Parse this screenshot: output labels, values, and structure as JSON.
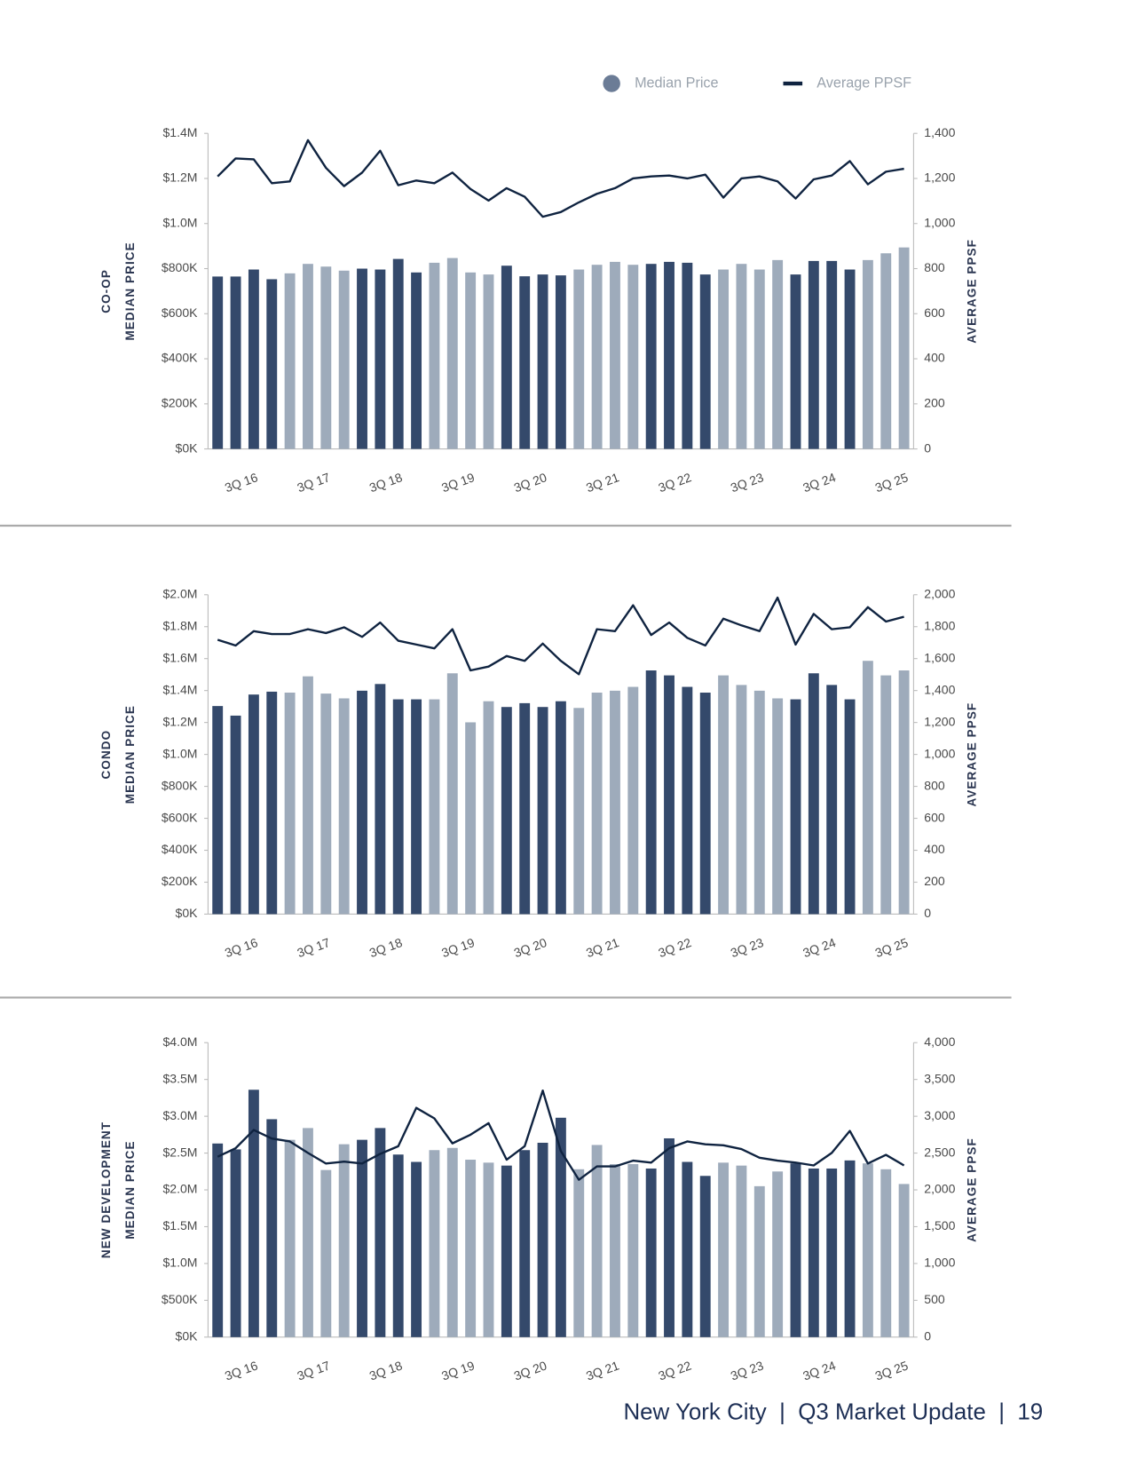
{
  "chart_data": [
    {
      "type": "bar",
      "ylabel": [
        "CO-OP",
        "MEDIAN PRICE"
      ],
      "y2label": "AVERAGE PPSF",
      "categories": [
        null,
        null,
        "3Q 16",
        null,
        null,
        null,
        "3Q 17",
        null,
        null,
        null,
        "3Q 18",
        null,
        null,
        null,
        "3Q 19",
        null,
        null,
        null,
        "3Q 20",
        null,
        null,
        null,
        "3Q 21",
        null,
        null,
        null,
        "3Q 22",
        null,
        null,
        null,
        "3Q 23",
        null,
        null,
        null,
        "3Q 24",
        null,
        null,
        null,
        "3Q 25"
      ],
      "ylim": [
        0,
        1400000
      ],
      "yticks": [
        {
          "value": 0,
          "label": "$0K"
        },
        {
          "value": 200000,
          "label": "$200K"
        },
        {
          "value": 400000,
          "label": "$400K"
        },
        {
          "value": 600000,
          "label": "$600K"
        },
        {
          "value": 800000,
          "label": "$800K"
        },
        {
          "value": 1000000,
          "label": "$1.0M"
        },
        {
          "value": 1200000,
          "label": "$1.2M"
        },
        {
          "value": 1400000,
          "label": "$1.4M"
        }
      ],
      "y2lim": [
        0,
        1400
      ],
      "y2ticks": [
        0,
        200,
        400,
        600,
        800,
        {
          "value": 1000,
          "label": "1,000"
        },
        {
          "value": 1200,
          "label": "1,200"
        },
        {
          "value": 1400,
          "label": "1,400"
        }
      ],
      "series": [
        {
          "name": "Median Price",
          "color": "#6b7c96",
          "colors": [
            "#34496b",
            "#34496b",
            "#34496b",
            "#34496b",
            "#9eabbb",
            "#9eabbb",
            "#9eabbb",
            "#9eabbb",
            "#34496b",
            "#34496b",
            "#34496b",
            "#34496b",
            "#9eabbb",
            "#9eabbb",
            "#9eabbb",
            "#9eabbb",
            "#34496b",
            "#34496b",
            "#34496b",
            "#34496b",
            "#9eabbb",
            "#9eabbb",
            "#9eabbb",
            "#9eabbb",
            "#34496b",
            "#34496b",
            "#34496b",
            "#34496b",
            "#9eabbb",
            "#9eabbb",
            "#9eabbb",
            "#9eabbb",
            "#34496b",
            "#34496b",
            "#34496b",
            "#34496b",
            "#9eabbb",
            "#9eabbb",
            "#9eabbb"
          ],
          "values": [
            765000,
            765000,
            796000,
            753000,
            779000,
            821000,
            809000,
            791000,
            800000,
            796000,
            843000,
            783000,
            826000,
            847000,
            783000,
            774000,
            813000,
            766000,
            774000,
            770000,
            796000,
            817000,
            830000,
            817000,
            821000,
            830000,
            826000,
            774000,
            796000,
            821000,
            796000,
            838000,
            774000,
            834000,
            834000,
            796000,
            838000,
            868000,
            894000
          ]
        },
        {
          "name": "Average PPSF",
          "color": "#0f2340",
          "axis": "y2",
          "values": [
            1209,
            1289,
            1285,
            1179,
            1187,
            1370,
            1247,
            1166,
            1226,
            1323,
            1170,
            1191,
            1179,
            1226,
            1153,
            1102,
            1157,
            1119,
            1030,
            1051,
            1094,
            1132,
            1157,
            1200,
            1209,
            1213,
            1200,
            1217,
            1115,
            1200,
            1209,
            1187,
            1111,
            1196,
            1213,
            1277,
            1174,
            1230,
            1243
          ]
        }
      ]
    },
    {
      "type": "bar",
      "ylabel": [
        "CONDO",
        "MEDIAN PRICE"
      ],
      "y2label": "AVERAGE PPSF",
      "categories": [
        null,
        null,
        "3Q 16",
        null,
        null,
        null,
        "3Q 17",
        null,
        null,
        null,
        "3Q 18",
        null,
        null,
        null,
        "3Q 19",
        null,
        null,
        null,
        "3Q 20",
        null,
        null,
        null,
        "3Q 21",
        null,
        null,
        null,
        "3Q 22",
        null,
        null,
        null,
        "3Q 23",
        null,
        null,
        null,
        "3Q 24",
        null,
        null,
        null,
        "3Q 25"
      ],
      "ylim": [
        0,
        2000000
      ],
      "yticks": [
        {
          "value": 0,
          "label": "$0K"
        },
        {
          "value": 200000,
          "label": "$200K"
        },
        {
          "value": 400000,
          "label": "$400K"
        },
        {
          "value": 600000,
          "label": "$600K"
        },
        {
          "value": 800000,
          "label": "$800K"
        },
        {
          "value": 1000000,
          "label": "$1.0M"
        },
        {
          "value": 1200000,
          "label": "$1.2M"
        },
        {
          "value": 1400000,
          "label": "$1.4M"
        },
        {
          "value": 1600000,
          "label": "$1.6M"
        },
        {
          "value": 1800000,
          "label": "$1.8M"
        },
        {
          "value": 2000000,
          "label": "$2.0M"
        }
      ],
      "y2lim": [
        0,
        2000
      ],
      "y2ticks": [
        0,
        200,
        400,
        600,
        800,
        {
          "value": 1000,
          "label": "1,000"
        },
        {
          "value": 1200,
          "label": "1,200"
        },
        {
          "value": 1400,
          "label": "1,400"
        },
        {
          "value": 1600,
          "label": "1,600"
        },
        {
          "value": 1800,
          "label": "1,800"
        },
        {
          "value": 2000,
          "label": "2,000"
        }
      ],
      "series": [
        {
          "name": "Median Price",
          "color": "#6b7c96",
          "colors": [
            "#34496b",
            "#34496b",
            "#34496b",
            "#34496b",
            "#9eabbb",
            "#9eabbb",
            "#9eabbb",
            "#9eabbb",
            "#34496b",
            "#34496b",
            "#34496b",
            "#34496b",
            "#9eabbb",
            "#9eabbb",
            "#9eabbb",
            "#9eabbb",
            "#34496b",
            "#34496b",
            "#34496b",
            "#34496b",
            "#9eabbb",
            "#9eabbb",
            "#9eabbb",
            "#9eabbb",
            "#34496b",
            "#34496b",
            "#34496b",
            "#34496b",
            "#9eabbb",
            "#9eabbb",
            "#9eabbb",
            "#9eabbb",
            "#34496b",
            "#34496b",
            "#34496b",
            "#34496b",
            "#9eabbb",
            "#9eabbb",
            "#9eabbb"
          ],
          "values": [
            1303000,
            1243000,
            1375000,
            1393000,
            1387000,
            1489000,
            1381000,
            1351000,
            1399000,
            1441000,
            1345000,
            1345000,
            1345000,
            1508000,
            1201000,
            1333000,
            1297000,
            1321000,
            1297000,
            1333000,
            1291000,
            1387000,
            1399000,
            1423000,
            1526000,
            1495000,
            1423000,
            1387000,
            1495000,
            1435000,
            1399000,
            1351000,
            1345000,
            1508000,
            1435000,
            1345000,
            1586000,
            1495000,
            1526000
          ]
        },
        {
          "name": "Average PPSF",
          "color": "#0f2340",
          "axis": "y2",
          "values": [
            1718,
            1682,
            1772,
            1754,
            1754,
            1784,
            1760,
            1796,
            1736,
            1826,
            1712,
            1688,
            1664,
            1784,
            1526,
            1550,
            1616,
            1586,
            1694,
            1586,
            1502,
            1784,
            1772,
            1934,
            1748,
            1826,
            1730,
            1682,
            1850,
            1808,
            1772,
            1982,
            1688,
            1880,
            1784,
            1796,
            1922,
            1832,
            1862
          ]
        }
      ]
    },
    {
      "type": "bar",
      "ylabel": [
        "NEW DEVELOPMENT",
        "MEDIAN PRICE"
      ],
      "y2label": "AVERAGE PPSF",
      "categories": [
        null,
        null,
        "3Q 16",
        null,
        null,
        null,
        "3Q 17",
        null,
        null,
        null,
        "3Q 18",
        null,
        null,
        null,
        "3Q 19",
        null,
        null,
        null,
        "3Q 20",
        null,
        null,
        null,
        "3Q 21",
        null,
        null,
        null,
        "3Q 22",
        null,
        null,
        null,
        "3Q 23",
        null,
        null,
        null,
        "3Q 24",
        null,
        null,
        null,
        "3Q 25"
      ],
      "ylim": [
        0,
        4000000
      ],
      "yticks": [
        {
          "value": 0,
          "label": "$0K"
        },
        {
          "value": 500000,
          "label": "$500K"
        },
        {
          "value": 1000000,
          "label": "$1.0M"
        },
        {
          "value": 1500000,
          "label": "$1.5M"
        },
        {
          "value": 2000000,
          "label": "$2.0M"
        },
        {
          "value": 2500000,
          "label": "$2.5M"
        },
        {
          "value": 3000000,
          "label": "$3.0M"
        },
        {
          "value": 3500000,
          "label": "$3.5M"
        },
        {
          "value": 4000000,
          "label": "$4.0M"
        }
      ],
      "y2lim": [
        0,
        4000
      ],
      "y2ticks": [
        0,
        500,
        {
          "value": 1000,
          "label": "1,000"
        },
        {
          "value": 1500,
          "label": "1,500"
        },
        {
          "value": 2000,
          "label": "2,000"
        },
        {
          "value": 2500,
          "label": "2,500"
        },
        {
          "value": 3000,
          "label": "3,000"
        },
        {
          "value": 3500,
          "label": "3,500"
        },
        {
          "value": 4000,
          "label": "4,000"
        }
      ],
      "series": [
        {
          "name": "Median Price",
          "color": "#6b7c96",
          "colors": [
            "#34496b",
            "#34496b",
            "#34496b",
            "#34496b",
            "#9eabbb",
            "#9eabbb",
            "#9eabbb",
            "#9eabbb",
            "#34496b",
            "#34496b",
            "#34496b",
            "#34496b",
            "#9eabbb",
            "#9eabbb",
            "#9eabbb",
            "#9eabbb",
            "#34496b",
            "#34496b",
            "#34496b",
            "#34496b",
            "#9eabbb",
            "#9eabbb",
            "#9eabbb",
            "#9eabbb",
            "#34496b",
            "#34496b",
            "#34496b",
            "#34496b",
            "#9eabbb",
            "#9eabbb",
            "#9eabbb",
            "#9eabbb",
            "#34496b",
            "#34496b",
            "#34496b",
            "#34496b",
            "#9eabbb",
            "#9eabbb",
            "#9eabbb"
          ],
          "values": [
            2630000,
            2550000,
            3360000,
            2960000,
            2680000,
            2840000,
            2270000,
            2620000,
            2680000,
            2840000,
            2480000,
            2380000,
            2540000,
            2570000,
            2410000,
            2370000,
            2330000,
            2540000,
            2640000,
            2980000,
            2280000,
            2610000,
            2350000,
            2350000,
            2290000,
            2700000,
            2380000,
            2190000,
            2370000,
            2330000,
            2050000,
            2250000,
            2360000,
            2290000,
            2290000,
            2400000,
            2360000,
            2280000,
            2080000
          ]
        },
        {
          "name": "Average PPSF",
          "color": "#0f2340",
          "axis": "y2",
          "values": [
            2450,
            2567,
            2814,
            2697,
            2658,
            2502,
            2358,
            2384,
            2358,
            2489,
            2593,
            3114,
            2971,
            2632,
            2749,
            2906,
            2410,
            2593,
            3349,
            2528,
            2137,
            2319,
            2319,
            2397,
            2371,
            2567,
            2658,
            2619,
            2606,
            2554,
            2437,
            2397,
            2371,
            2332,
            2502,
            2801,
            2358,
            2476,
            2332
          ]
        }
      ]
    }
  ],
  "footer": "New York City  |  Q3 Market Update  |  19"
}
